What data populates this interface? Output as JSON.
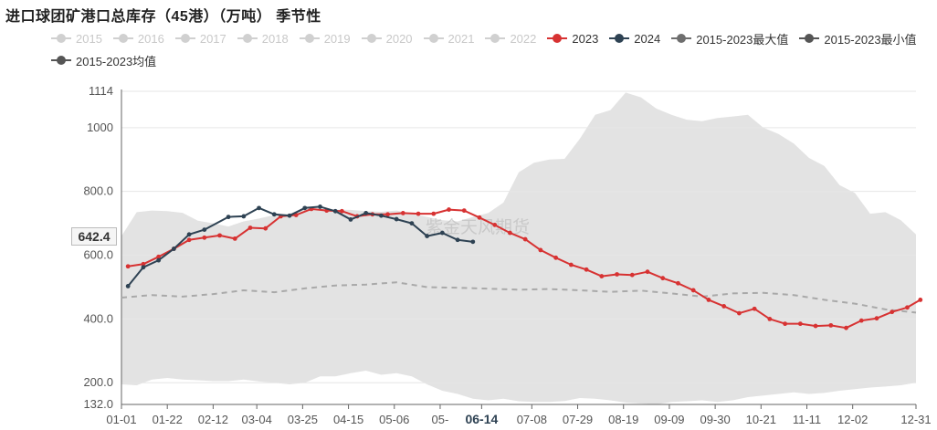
{
  "page": {
    "title": "进口球团矿港口总库存（45港）（万吨） 季节性",
    "watermark": "紫金天风期货",
    "current_value_label": "642.4",
    "current_date_label": "06-14"
  },
  "chart_data": {
    "type": "line",
    "title": "进口球团矿港口总库存（45港）（万吨） 季节性",
    "xlabel": "",
    "ylabel": "",
    "ylim": [
      132,
      1114
    ],
    "y_ticks": [
      "132.0",
      "200.0",
      "400.0",
      "600.0",
      "800.0",
      "1000",
      "1114"
    ],
    "x_tick_labels": [
      "01-01",
      "01-22",
      "02-12",
      "03-04",
      "03-25",
      "04-15",
      "05-06",
      "05-",
      "06-14",
      "07-08",
      "07-29",
      "08-19",
      "09-09",
      "09-30",
      "10-21",
      "11-11",
      "12-02",
      "12-31"
    ],
    "x_tick_days": [
      1,
      22,
      43,
      63,
      84,
      105,
      126,
      147,
      166,
      189,
      210,
      231,
      252,
      273,
      294,
      315,
      336,
      365
    ],
    "legend": [
      "2015",
      "2016",
      "2017",
      "2018",
      "2019",
      "2020",
      "2021",
      "2022",
      "2023",
      "2024",
      "2015-2023最大值",
      "2015-2023最小值",
      "2015-2023均值"
    ],
    "legend_colors": [
      "#d0d0d0",
      "#d0d0d0",
      "#d0d0d0",
      "#d0d0d0",
      "#d0d0d0",
      "#d0d0d0",
      "#d0d0d0",
      "#d0d0d0",
      "#d73232",
      "#2e4253",
      "#6e6e6e",
      "#555555",
      "#555555"
    ],
    "legend_inactive": [
      "2015",
      "2016",
      "2017",
      "2018",
      "2019",
      "2020",
      "2021",
      "2022"
    ],
    "range_band": {
      "day": [
        1,
        8,
        15,
        22,
        29,
        36,
        43,
        50,
        57,
        64,
        71,
        78,
        85,
        92,
        99,
        106,
        113,
        120,
        127,
        134,
        141,
        148,
        155,
        162,
        169,
        176,
        183,
        190,
        197,
        204,
        211,
        218,
        225,
        232,
        239,
        246,
        253,
        260,
        267,
        274,
        281,
        288,
        295,
        302,
        309,
        316,
        323,
        330,
        337,
        344,
        351,
        358,
        365
      ],
      "max": [
        660,
        735,
        740,
        738,
        733,
        708,
        700,
        690,
        706,
        715,
        726,
        730,
        748,
        745,
        743,
        742,
        738,
        736,
        740,
        730,
        720,
        710,
        706,
        720,
        732,
        765,
        860,
        890,
        900,
        902,
        965,
        1040,
        1055,
        1110,
        1095,
        1060,
        1040,
        1025,
        1020,
        1030,
        1035,
        1040,
        1000,
        980,
        950,
        905,
        880,
        820,
        795,
        730,
        735,
        710,
        665
      ],
      "min": [
        195,
        192,
        210,
        215,
        210,
        208,
        205,
        205,
        210,
        204,
        200,
        195,
        200,
        220,
        220,
        230,
        238,
        225,
        230,
        220,
        195,
        175,
        165,
        150,
        145,
        150,
        142,
        140,
        140,
        143,
        152,
        150,
        145,
        138,
        135,
        132,
        140,
        142,
        145,
        140,
        145,
        155,
        160,
        165,
        170,
        165,
        168,
        175,
        180,
        185,
        188,
        192,
        200
      ]
    },
    "series": [
      {
        "name": "2015-2023均值",
        "day": [
          1,
          15,
          29,
          43,
          57,
          71,
          85,
          99,
          113,
          127,
          141,
          155,
          169,
          183,
          197,
          211,
          225,
          239,
          253,
          267,
          281,
          295,
          309,
          323,
          337,
          351,
          365
        ],
        "values": [
          467,
          475,
          470,
          478,
          490,
          484,
          496,
          505,
          508,
          515,
          500,
          498,
          495,
          492,
          494,
          490,
          485,
          489,
          480,
          470,
          480,
          482,
          475,
          460,
          448,
          430,
          420
        ]
      },
      {
        "name": "2023",
        "day": [
          4,
          11,
          18,
          25,
          32,
          39,
          46,
          53,
          60,
          67,
          74,
          81,
          88,
          95,
          102,
          109,
          116,
          123,
          130,
          137,
          144,
          151,
          158,
          165,
          172,
          179,
          186,
          193,
          200,
          207,
          214,
          221,
          228,
          235,
          242,
          249,
          256,
          263,
          270,
          277,
          284,
          291,
          298,
          305,
          312,
          319,
          326,
          333,
          340,
          347,
          354,
          361,
          367
        ],
        "values": [
          565,
          572,
          595,
          620,
          648,
          655,
          662,
          652,
          686,
          684,
          722,
          726,
          745,
          740,
          738,
          722,
          728,
          728,
          732,
          730,
          730,
          743,
          740,
          718,
          695,
          670,
          650,
          616,
          592,
          570,
          555,
          534,
          540,
          538,
          548,
          528,
          512,
          490,
          460,
          440,
          418,
          432,
          400,
          385,
          385,
          378,
          380,
          372,
          395,
          402,
          422,
          436,
          460
        ]
      },
      {
        "name": "2024",
        "day": [
          4,
          11,
          18,
          25,
          32,
          39,
          50,
          57,
          64,
          71,
          78,
          85,
          92,
          99,
          106,
          113,
          120,
          127,
          134,
          141,
          148,
          155,
          162
        ],
        "values": [
          503,
          562,
          584,
          620,
          665,
          680,
          720,
          722,
          748,
          728,
          724,
          748,
          752,
          738,
          712,
          732,
          724,
          713,
          700,
          660,
          670,
          648,
          642
        ]
      }
    ]
  }
}
